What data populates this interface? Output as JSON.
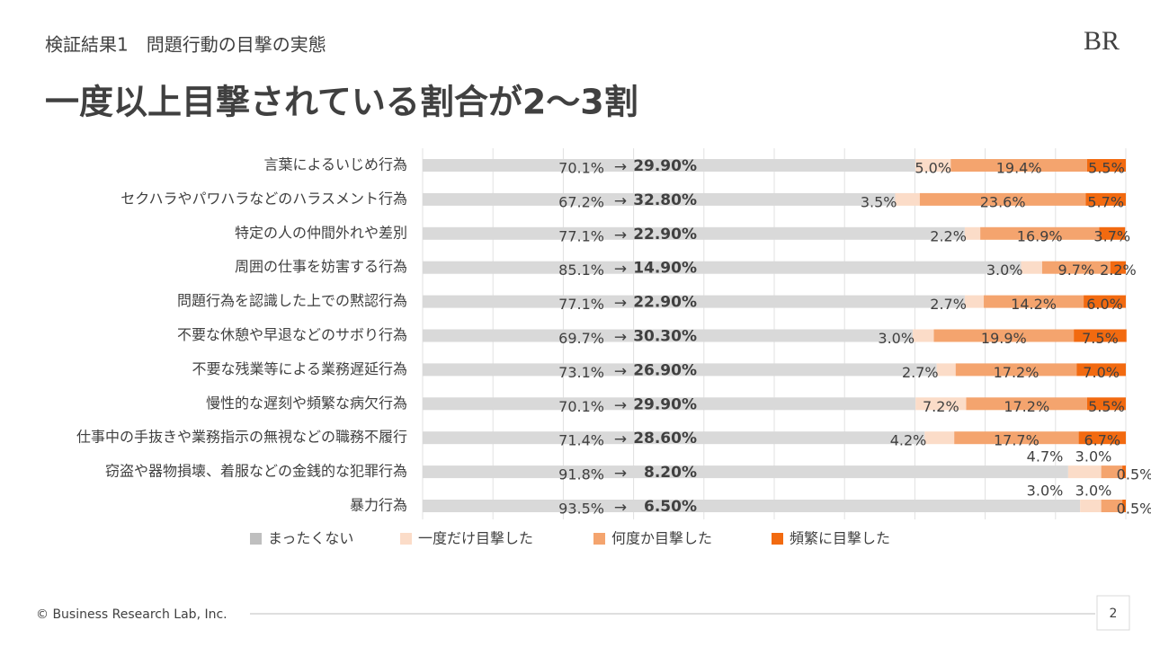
{
  "header": {
    "subtitle": "検証結果1　問題行動の目撃の実態",
    "title": "一度以上目撃されている割合が2～3割",
    "logo": "BR"
  },
  "chart_data": {
    "type": "stacked-barh",
    "categories": [
      "言葉によるいじめ行為",
      "セクハラやパワハラなどのハラスメント行為",
      "特定の人の仲間外れや差別",
      "周囲の仕事を妨害する行為",
      "問題行為を認識した上での黙認行為",
      "不要な休憩や早退などのサボり行為",
      "不要な残業等による業務遅延行為",
      "慢性的な遅刻や頻繁な病欠行為",
      "仕事中の手抜きや業務指示の無視などの職務不履行",
      "窃盗や器物損壊、着服などの金銭的な犯罪行為",
      "暴力行為"
    ],
    "series": [
      {
        "name": "まったくない",
        "color": "#d9d9d9",
        "legend_color": "#bfbfbf",
        "values": [
          70.1,
          67.2,
          77.1,
          85.1,
          77.1,
          69.7,
          73.1,
          70.1,
          71.4,
          91.8,
          93.5
        ],
        "value_labels": [
          "70.1%",
          "67.2%",
          "77.1%",
          "85.1%",
          "77.1%",
          "69.7%",
          "73.1%",
          "70.1%",
          "71.4%",
          "91.8%",
          "93.5%"
        ]
      },
      {
        "name": "一度だけ目撃した",
        "color": "#fbdcc8",
        "values": [
          5,
          3.5,
          2.2,
          3,
          2.7,
          3,
          2.7,
          7.2,
          4.2,
          4.7,
          3
        ],
        "value_labels": [
          "5.0%",
          "3.5%",
          "2.2%",
          "3.0%",
          "2.7%",
          "3.0%",
          "2.7%",
          "7.2%",
          "4.2%",
          "4.7%",
          "3.0%"
        ]
      },
      {
        "name": "何度か目撃した",
        "color": "#f4a46e",
        "values": [
          19.4,
          23.6,
          16.9,
          9.7,
          14.2,
          19.9,
          17.2,
          17.2,
          17.7,
          3,
          3
        ],
        "value_labels": [
          "19.4%",
          "23.6%",
          "16.9%",
          "9.7%",
          "14.2%",
          "19.9%",
          "17.2%",
          "17.2%",
          "17.7%",
          "3.0%",
          "3.0%"
        ]
      },
      {
        "name": "頻繁に目撃した",
        "color": "#f26a10",
        "values": [
          5.5,
          5.7,
          3.7,
          2.2,
          6,
          7.5,
          7,
          5.5,
          6.7,
          0.5,
          0.5
        ],
        "value_labels": [
          "5.5%",
          "5.7%",
          "3.7%",
          "2.2%",
          "6.0%",
          "7.5%",
          "7.0%",
          "5.5%",
          "6.7%",
          "0.5%",
          "0.5%"
        ]
      }
    ],
    "arrow": "→",
    "seen_total": {
      "values": [
        29.9,
        32.8,
        22.9,
        14.9,
        22.9,
        30.3,
        26.9,
        29.9,
        28.6,
        8.2,
        6.5
      ],
      "value_labels": [
        "29.90%",
        "32.80%",
        "22.90%",
        "14.90%",
        "22.90%",
        "30.30%",
        "26.90%",
        "29.90%",
        "28.60%",
        "8.20%",
        "6.50%"
      ]
    },
    "xlim": [
      0,
      100
    ],
    "xticks": [
      0,
      10,
      20,
      30,
      40,
      50,
      60,
      70,
      80,
      90,
      100
    ],
    "grid": true
  },
  "footer": {
    "copyright": "© Business Research Lab, Inc.",
    "page": "2"
  }
}
